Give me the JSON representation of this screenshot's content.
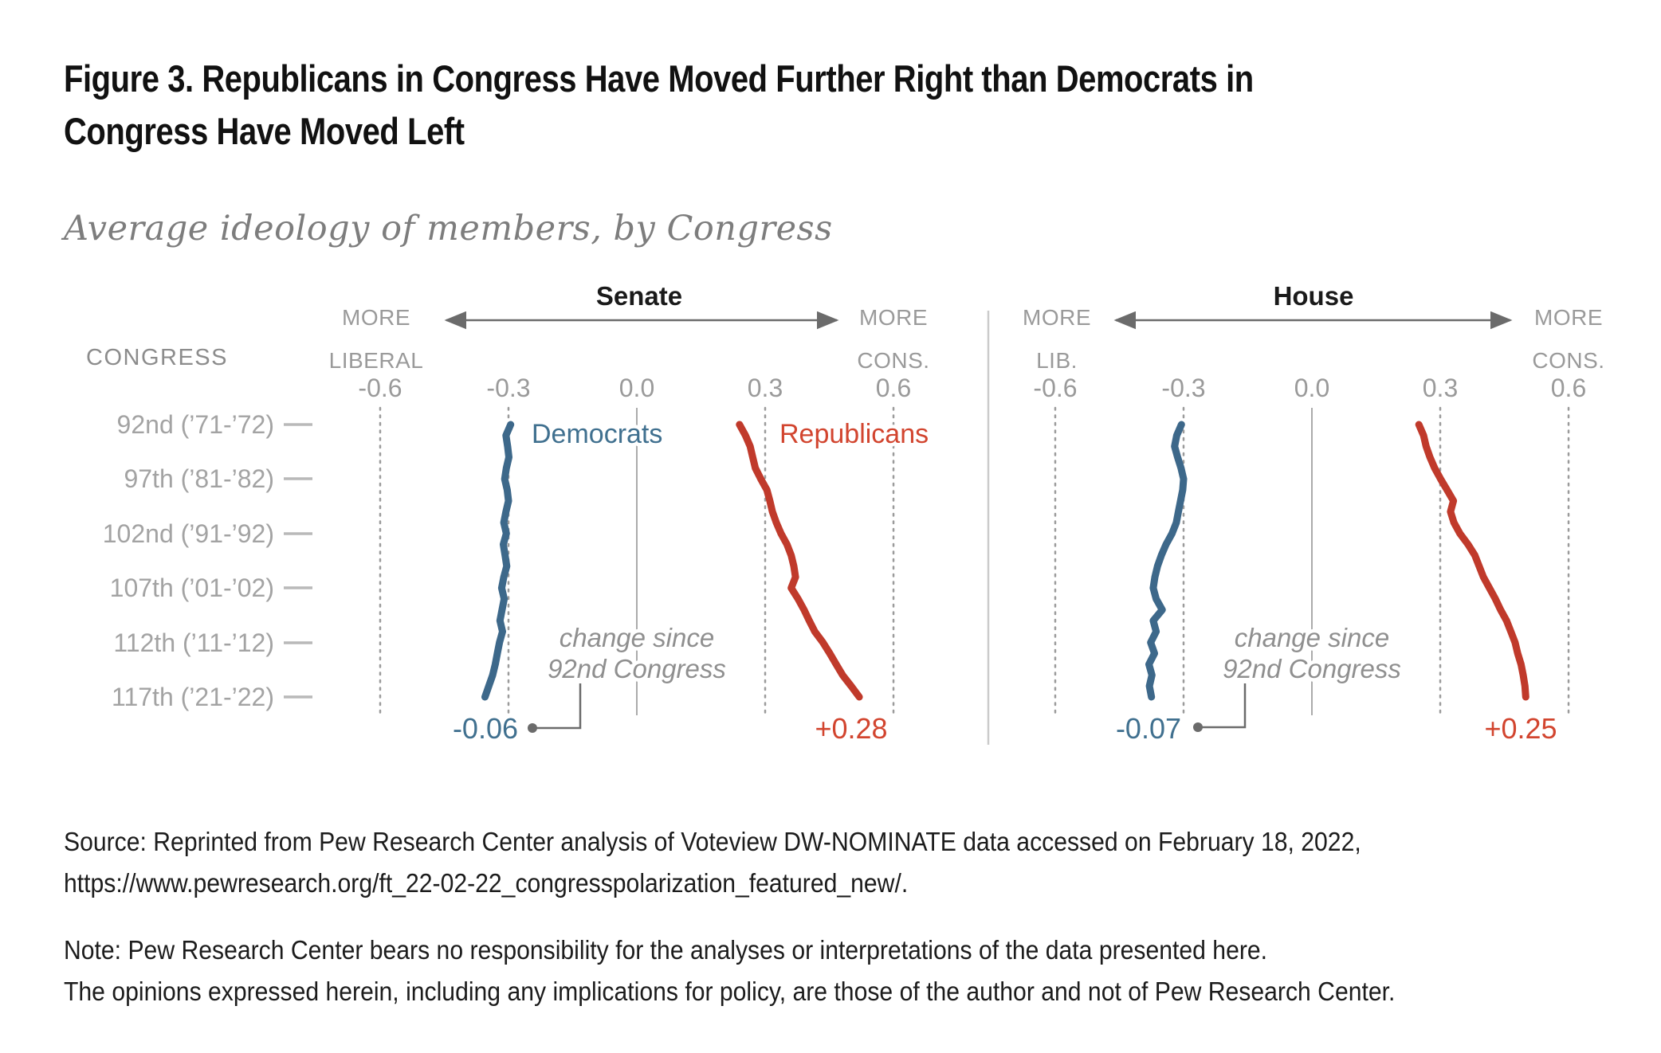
{
  "figure": {
    "title_lines": [
      "Figure 3. Republicans in Congress Have Moved Further Right than Democrats in",
      "Congress Have Moved Left"
    ],
    "subtitle": "Average ideology of members, by Congress"
  },
  "left_axis": {
    "header": "CONGRESS",
    "rows": [
      "92nd (’71-’72)",
      "97th (’81-’82)",
      "102nd (’91-’92)",
      "107th (’01-’02)",
      "112th (’11-’12)",
      "117th (’21-’22)"
    ]
  },
  "colors": {
    "democrat_line": "#3D688A",
    "democrat_text": "#40708F",
    "republican_line": "#C03A2B",
    "republican_text": "#D2452F",
    "axis_gray": "#9a9a9a",
    "annotation_gray": "#8f8f8f",
    "connector_gray": "#6b6b6b",
    "separator_gray": "#cbcbcb"
  },
  "chart_data": {
    "type": "line",
    "orientation": "vertical: y axis = Congress (92nd 1971-72 through 117th 2021-22), x axis = average ideology (DW-NOMINATE), negative = liberal, positive = conservative",
    "title": "Average ideology of members, by Congress",
    "value_range": [
      -0.6,
      0.6
    ],
    "congresses": [
      92,
      93,
      94,
      95,
      96,
      97,
      98,
      99,
      100,
      101,
      102,
      103,
      104,
      105,
      106,
      107,
      108,
      109,
      110,
      111,
      112,
      113,
      114,
      115,
      116,
      117
    ],
    "panels": [
      {
        "title": "Senate",
        "left_label_lines": [
          "MORE",
          "LIBERAL"
        ],
        "right_label_lines": [
          "MORE",
          "CONS."
        ],
        "tick_labels": [
          "-0.6",
          "-0.3",
          "0.0",
          "0.3",
          "0.6"
        ],
        "annotation_lines": [
          "change since",
          "92nd Congress"
        ],
        "series": [
          {
            "name": "Democrats",
            "color": "#3D688A",
            "change_label": "-0.06",
            "values": [
              -0.295,
              -0.306,
              -0.302,
              -0.299,
              -0.305,
              -0.309,
              -0.303,
              -0.3,
              -0.306,
              -0.311,
              -0.305,
              -0.312,
              -0.308,
              -0.304,
              -0.311,
              -0.316,
              -0.31,
              -0.315,
              -0.32,
              -0.314,
              -0.321,
              -0.326,
              -0.331,
              -0.337,
              -0.346,
              -0.355
            ]
          },
          {
            "name": "Republicans",
            "color": "#C03A2B",
            "change_label": "+0.28",
            "values": [
              0.24,
              0.254,
              0.265,
              0.271,
              0.277,
              0.29,
              0.304,
              0.311,
              0.317,
              0.326,
              0.337,
              0.351,
              0.361,
              0.367,
              0.371,
              0.361,
              0.377,
              0.391,
              0.403,
              0.416,
              0.435,
              0.451,
              0.466,
              0.481,
              0.501,
              0.52
            ]
          }
        ]
      },
      {
        "title": "House",
        "left_label_lines": [
          "MORE",
          "LIB."
        ],
        "right_label_lines": [
          "MORE",
          "CONS."
        ],
        "tick_labels": [
          "-0.6",
          "-0.3",
          "0.0",
          "0.3",
          "0.6"
        ],
        "annotation_lines": [
          "change since",
          "92nd Congress"
        ],
        "series": [
          {
            "name": "Democrats",
            "color": "#3D688A",
            "change_label": "-0.07",
            "values": [
              -0.305,
              -0.316,
              -0.321,
              -0.314,
              -0.306,
              -0.3,
              -0.302,
              -0.307,
              -0.312,
              -0.317,
              -0.327,
              -0.341,
              -0.352,
              -0.361,
              -0.367,
              -0.371,
              -0.364,
              -0.35,
              -0.371,
              -0.364,
              -0.377,
              -0.368,
              -0.381,
              -0.374,
              -0.38,
              -0.375
            ]
          },
          {
            "name": "Republicans",
            "color": "#C03A2B",
            "change_label": "+0.25",
            "values": [
              0.25,
              0.261,
              0.267,
              0.276,
              0.287,
              0.301,
              0.316,
              0.331,
              0.324,
              0.332,
              0.346,
              0.365,
              0.381,
              0.391,
              0.401,
              0.415,
              0.429,
              0.441,
              0.455,
              0.465,
              0.475,
              0.481,
              0.489,
              0.494,
              0.498,
              0.5
            ]
          }
        ]
      }
    ]
  },
  "footer": {
    "source_lines": [
      "Source: Reprinted from Pew Research Center analysis of Voteview DW-NOMINATE data accessed on February 18, 2022,",
      "https://www.pewresearch.org/ft_22-02-22_congresspolarization_featured_new/."
    ],
    "note_lines": [
      "Note: Pew Research Center bears no responsibility for the analyses or interpretations of the data presented here.",
      "The opinions expressed herein, including any implications for policy, are those of the author and not of Pew Research Center."
    ]
  }
}
